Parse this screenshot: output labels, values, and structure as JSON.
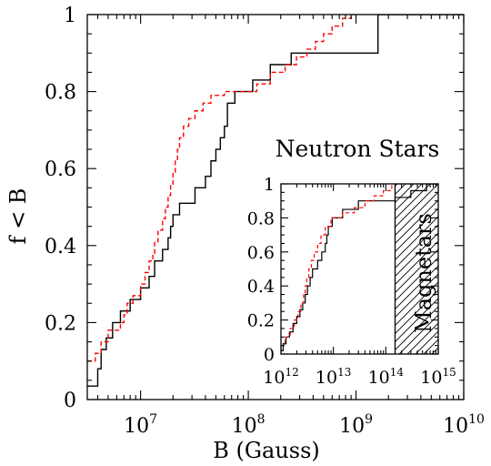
{
  "chart_data": [
    {
      "type": "line",
      "step": true,
      "xscale": "log",
      "xlim": [
        3200000.0,
        10000000000.0
      ],
      "ylim": [
        0,
        1
      ],
      "xlabel": "B (Gauss)",
      "ylabel": "f < B",
      "x_ticks": [
        {
          "base": "10",
          "exp": "7",
          "value": 10000000.0
        },
        {
          "base": "10",
          "exp": "8",
          "value": 100000000.0
        },
        {
          "base": "10",
          "exp": "9",
          "value": 1000000000.0
        },
        {
          "base": "10",
          "exp": "10",
          "value": 10000000000.0
        }
      ],
      "y_ticks": [
        "0",
        "0.2",
        "0.4",
        "0.6",
        "0.8",
        "1"
      ],
      "y_tick_values": [
        0,
        0.2,
        0.4,
        0.6,
        0.8,
        1
      ],
      "series": [
        {
          "color": "#000000",
          "style": "solid",
          "points": [
            [
              3200000.0,
              0.035
            ],
            [
              4000000.0,
              0.035
            ],
            [
              4000000.0,
              0.08
            ],
            [
              4300000.0,
              0.08
            ],
            [
              4300000.0,
              0.13
            ],
            [
              4800000.0,
              0.13
            ],
            [
              4800000.0,
              0.16
            ],
            [
              5500000.0,
              0.16
            ],
            [
              5500000.0,
              0.2
            ],
            [
              6500000.0,
              0.2
            ],
            [
              6500000.0,
              0.23
            ],
            [
              8000000.0,
              0.23
            ],
            [
              8000000.0,
              0.26
            ],
            [
              10000000.0,
              0.26
            ],
            [
              10000000.0,
              0.29
            ],
            [
              12000000.0,
              0.29
            ],
            [
              12000000.0,
              0.32
            ],
            [
              13500000.0,
              0.32
            ],
            [
              13500000.0,
              0.36
            ],
            [
              16000000.0,
              0.36
            ],
            [
              16000000.0,
              0.39
            ],
            [
              18000000.0,
              0.39
            ],
            [
              18000000.0,
              0.42
            ],
            [
              19000000.0,
              0.42
            ],
            [
              19000000.0,
              0.45
            ],
            [
              20000000.0,
              0.45
            ],
            [
              20000000.0,
              0.48
            ],
            [
              23000000.0,
              0.48
            ],
            [
              23000000.0,
              0.51
            ],
            [
              32000000.0,
              0.51
            ],
            [
              32000000.0,
              0.55
            ],
            [
              40000000.0,
              0.55
            ],
            [
              40000000.0,
              0.58
            ],
            [
              45000000.0,
              0.58
            ],
            [
              45000000.0,
              0.62
            ],
            [
              50000000.0,
              0.62
            ],
            [
              50000000.0,
              0.65
            ],
            [
              55000000.0,
              0.65
            ],
            [
              55000000.0,
              0.68
            ],
            [
              60000000.0,
              0.68
            ],
            [
              60000000.0,
              0.71
            ],
            [
              64000000.0,
              0.71
            ],
            [
              64000000.0,
              0.77
            ],
            [
              75000000.0,
              0.77
            ],
            [
              75000000.0,
              0.8
            ],
            [
              110000000.0,
              0.8
            ],
            [
              110000000.0,
              0.83
            ],
            [
              160000000.0,
              0.83
            ],
            [
              160000000.0,
              0.87
            ],
            [
              250000000.0,
              0.87
            ],
            [
              250000000.0,
              0.9
            ],
            [
              1600000000.0,
              0.9
            ],
            [
              1600000000.0,
              1.0
            ],
            [
              10000000000.0,
              1.0
            ]
          ]
        },
        {
          "color": "#ff0000",
          "style": "dashed",
          "points": [
            [
              3200000.0,
              0.1
            ],
            [
              3800000.0,
              0.1
            ],
            [
              3800000.0,
              0.12
            ],
            [
              4300000.0,
              0.12
            ],
            [
              4300000.0,
              0.15
            ],
            [
              5000000.0,
              0.15
            ],
            [
              5000000.0,
              0.18
            ],
            [
              6500000.0,
              0.18
            ],
            [
              6500000.0,
              0.2
            ],
            [
              7000000.0,
              0.2
            ],
            [
              7000000.0,
              0.22
            ],
            [
              7500000.0,
              0.22
            ],
            [
              7500000.0,
              0.25
            ],
            [
              8500000.0,
              0.25
            ],
            [
              8500000.0,
              0.27
            ],
            [
              10000000.0,
              0.27
            ],
            [
              10000000.0,
              0.3
            ],
            [
              11000000.0,
              0.3
            ],
            [
              11000000.0,
              0.33
            ],
            [
              12000000.0,
              0.33
            ],
            [
              12000000.0,
              0.36
            ],
            [
              13000000.0,
              0.36
            ],
            [
              13000000.0,
              0.38
            ],
            [
              13500000.0,
              0.38
            ],
            [
              13500000.0,
              0.41
            ],
            [
              14500000.0,
              0.41
            ],
            [
              14500000.0,
              0.44
            ],
            [
              16000000.0,
              0.44
            ],
            [
              16000000.0,
              0.47
            ],
            [
              17000000.0,
              0.47
            ],
            [
              17000000.0,
              0.5
            ],
            [
              18000000.0,
              0.5
            ],
            [
              18000000.0,
              0.53
            ],
            [
              19000000.0,
              0.53
            ],
            [
              19000000.0,
              0.56
            ],
            [
              20000000.0,
              0.56
            ],
            [
              20000000.0,
              0.59
            ],
            [
              21000000.0,
              0.59
            ],
            [
              21000000.0,
              0.62
            ],
            [
              22000000.0,
              0.62
            ],
            [
              22000000.0,
              0.65
            ],
            [
              23000000.0,
              0.65
            ],
            [
              23000000.0,
              0.68
            ],
            [
              25000000.0,
              0.68
            ],
            [
              25000000.0,
              0.71
            ],
            [
              28000000.0,
              0.71
            ],
            [
              28000000.0,
              0.73
            ],
            [
              32000000.0,
              0.73
            ],
            [
              32000000.0,
              0.75
            ],
            [
              38000000.0,
              0.75
            ],
            [
              38000000.0,
              0.77
            ],
            [
              45000000.0,
              0.77
            ],
            [
              45000000.0,
              0.79
            ],
            [
              60000000.0,
              0.79
            ],
            [
              60000000.0,
              0.8
            ],
            [
              120000000.0,
              0.8
            ],
            [
              120000000.0,
              0.82
            ],
            [
              160000000.0,
              0.82
            ],
            [
              160000000.0,
              0.85
            ],
            [
              220000000.0,
              0.85
            ],
            [
              220000000.0,
              0.87
            ],
            [
              280000000.0,
              0.87
            ],
            [
              280000000.0,
              0.89
            ],
            [
              350000000.0,
              0.89
            ],
            [
              350000000.0,
              0.91
            ],
            [
              420000000.0,
              0.91
            ],
            [
              420000000.0,
              0.93
            ],
            [
              500000000.0,
              0.93
            ],
            [
              500000000.0,
              0.95
            ],
            [
              600000000.0,
              0.95
            ],
            [
              600000000.0,
              0.97
            ],
            [
              750000000.0,
              0.97
            ],
            [
              750000000.0,
              0.99
            ],
            [
              900000000.0,
              0.99
            ],
            [
              900000000.0,
              1.0
            ],
            [
              1000000000.0,
              1.0
            ]
          ]
        }
      ]
    },
    {
      "type": "line",
      "step": true,
      "inset": true,
      "title": "Neutron Stars",
      "annotation": "Magnetars",
      "xscale": "log",
      "xlim": [
        1000000000000.0,
        1000000000000000.0
      ],
      "ylim": [
        0,
        1
      ],
      "hatched_region": {
        "x_from": 150000000000000.0,
        "x_to": 1000000000000000.0
      },
      "x_ticks": [
        {
          "base": "10",
          "exp": "12",
          "value": 1000000000000.0
        },
        {
          "base": "10",
          "exp": "13",
          "value": 10000000000000.0
        },
        {
          "base": "10",
          "exp": "14",
          "value": 100000000000000.0
        },
        {
          "base": "10",
          "exp": "15",
          "value": 1000000000000000.0
        }
      ],
      "y_ticks": [
        "0",
        "0.2",
        "0.4",
        "0.6",
        "0.8",
        "1"
      ],
      "y_tick_values": [
        0,
        0.2,
        0.4,
        0.6,
        0.8,
        1
      ],
      "series": [
        {
          "color": "#000000",
          "style": "solid",
          "points": [
            [
              1000000000000.0,
              0.02
            ],
            [
              1100000000000.0,
              0.02
            ],
            [
              1100000000000.0,
              0.06
            ],
            [
              1250000000000.0,
              0.06
            ],
            [
              1250000000000.0,
              0.1
            ],
            [
              1450000000000.0,
              0.1
            ],
            [
              1450000000000.0,
              0.13
            ],
            [
              1700000000000.0,
              0.13
            ],
            [
              1700000000000.0,
              0.18
            ],
            [
              2000000000000.0,
              0.18
            ],
            [
              2000000000000.0,
              0.22
            ],
            [
              2300000000000.0,
              0.22
            ],
            [
              2300000000000.0,
              0.26
            ],
            [
              2600000000000.0,
              0.26
            ],
            [
              2600000000000.0,
              0.3
            ],
            [
              2900000000000.0,
              0.3
            ],
            [
              2900000000000.0,
              0.35
            ],
            [
              3200000000000.0,
              0.35
            ],
            [
              3200000000000.0,
              0.4
            ],
            [
              3600000000000.0,
              0.4
            ],
            [
              3600000000000.0,
              0.45
            ],
            [
              4000000000000.0,
              0.45
            ],
            [
              4000000000000.0,
              0.5
            ],
            [
              5000000000000.0,
              0.5
            ],
            [
              5000000000000.0,
              0.55
            ],
            [
              6000000000000.0,
              0.55
            ],
            [
              6000000000000.0,
              0.6
            ],
            [
              7000000000000.0,
              0.6
            ],
            [
              7000000000000.0,
              0.65
            ],
            [
              7500000000000.0,
              0.65
            ],
            [
              7500000000000.0,
              0.7
            ],
            [
              8000000000000.0,
              0.7
            ],
            [
              8000000000000.0,
              0.75
            ],
            [
              9500000000000.0,
              0.75
            ],
            [
              9500000000000.0,
              0.8
            ],
            [
              15000000000000.0,
              0.8
            ],
            [
              15000000000000.0,
              0.85
            ],
            [
              30000000000000.0,
              0.85
            ],
            [
              30000000000000.0,
              0.9
            ],
            [
              150000000000000.0,
              0.9
            ],
            [
              150000000000000.0,
              0.92
            ],
            [
              300000000000000.0,
              0.92
            ],
            [
              300000000000000.0,
              0.96
            ],
            [
              600000000000000.0,
              0.96
            ],
            [
              600000000000000.0,
              1.0
            ],
            [
              1000000000000000.0,
              1.0
            ]
          ]
        },
        {
          "color": "#ff0000",
          "style": "dashed",
          "points": [
            [
              1000000000000.0,
              0.05
            ],
            [
              1200000000000.0,
              0.05
            ],
            [
              1200000000000.0,
              0.1
            ],
            [
              1500000000000.0,
              0.1
            ],
            [
              1500000000000.0,
              0.15
            ],
            [
              1800000000000.0,
              0.15
            ],
            [
              1800000000000.0,
              0.2
            ],
            [
              2100000000000.0,
              0.2
            ],
            [
              2100000000000.0,
              0.25
            ],
            [
              2400000000000.0,
              0.25
            ],
            [
              2400000000000.0,
              0.3
            ],
            [
              2700000000000.0,
              0.3
            ],
            [
              2700000000000.0,
              0.35
            ],
            [
              2900000000000.0,
              0.35
            ],
            [
              2900000000000.0,
              0.4
            ],
            [
              3100000000000.0,
              0.4
            ],
            [
              3100000000000.0,
              0.45
            ],
            [
              3400000000000.0,
              0.45
            ],
            [
              3400000000000.0,
              0.5
            ],
            [
              3800000000000.0,
              0.5
            ],
            [
              3800000000000.0,
              0.55
            ],
            [
              4300000000000.0,
              0.55
            ],
            [
              4300000000000.0,
              0.6
            ],
            [
              5000000000000.0,
              0.6
            ],
            [
              5000000000000.0,
              0.65
            ],
            [
              5800000000000.0,
              0.65
            ],
            [
              5800000000000.0,
              0.7
            ],
            [
              7000000000000.0,
              0.7
            ],
            [
              7000000000000.0,
              0.75
            ],
            [
              9000000000000.0,
              0.75
            ],
            [
              9000000000000.0,
              0.8
            ],
            [
              15000000000000.0,
              0.8
            ],
            [
              15000000000000.0,
              0.83
            ],
            [
              25000000000000.0,
              0.83
            ],
            [
              25000000000000.0,
              0.86
            ],
            [
              40000000000000.0,
              0.86
            ],
            [
              40000000000000.0,
              0.9
            ],
            [
              60000000000000.0,
              0.9
            ],
            [
              60000000000000.0,
              0.93
            ],
            [
              90000000000000.0,
              0.93
            ],
            [
              90000000000000.0,
              0.96
            ],
            [
              130000000000000.0,
              0.96
            ],
            [
              130000000000000.0,
              1.0
            ],
            [
              1000000000000000.0,
              1.0
            ]
          ]
        }
      ]
    }
  ]
}
